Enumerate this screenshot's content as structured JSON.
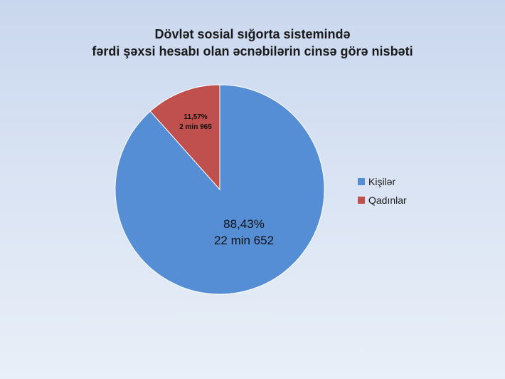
{
  "chart_data": {
    "type": "pie",
    "title_lines": [
      "Dövlət sosial sığorta sistemində",
      "fərdi şəxsi hesabı olan əcnəbilərin cinsə görə nisbəti"
    ],
    "slices": [
      {
        "name": "Kişilər",
        "percent": 88.43,
        "percent_label": "88,43%",
        "count_label": "22 min 652",
        "color": "#558ed5"
      },
      {
        "name": "Qadınlar",
        "percent": 11.57,
        "percent_label": "11,57%",
        "count_label": "2 min 965",
        "color": "#c0504d"
      }
    ],
    "legend_position": "right"
  }
}
